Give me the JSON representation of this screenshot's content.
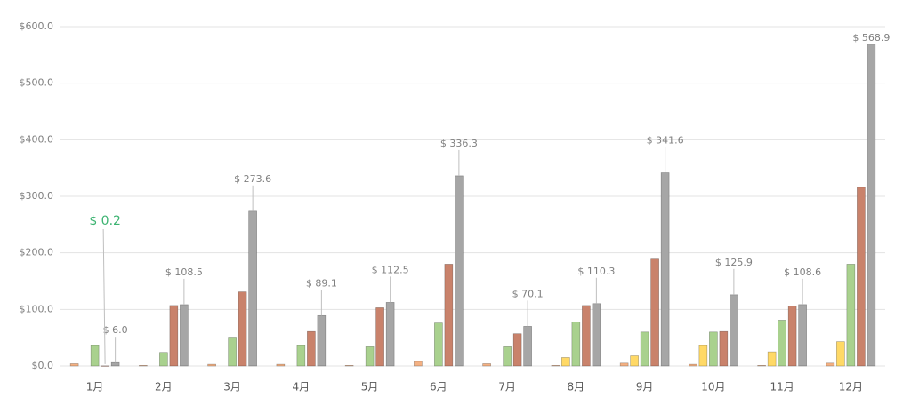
{
  "chart_data": {
    "type": "bar",
    "categories": [
      "1月",
      "2月",
      "3月",
      "4月",
      "5月",
      "6月",
      "7月",
      "8月",
      "9月",
      "10月",
      "11月",
      "12月"
    ],
    "series": [
      {
        "color": "#f4b183",
        "values": [
          4,
          1,
          3,
          3,
          1,
          8,
          4,
          1,
          5,
          3,
          1,
          5
        ]
      },
      {
        "color": "#ffd966",
        "values": [
          null,
          null,
          null,
          null,
          null,
          null,
          null,
          15,
          18,
          36,
          25,
          43
        ]
      },
      {
        "color": "#a9d18e",
        "values": [
          36,
          24,
          51,
          36,
          34,
          76,
          34,
          78,
          60,
          60,
          81,
          180
        ]
      },
      {
        "color": "#c9826b",
        "values": [
          0.2,
          107,
          131,
          61,
          103,
          180,
          57,
          107,
          189,
          61,
          106,
          316
        ]
      },
      {
        "color": "#a6a6a6",
        "values": [
          6.0,
          108.5,
          273.6,
          89.1,
          112.5,
          336.3,
          70.1,
          110.3,
          341.6,
          125.9,
          108.6,
          568.9
        ],
        "value_labels": [
          "$ 6.0",
          "$ 108.5",
          "$ 273.6",
          "$ 89.1",
          "$ 112.5",
          "$ 336.3",
          "$ 70.1",
          "$ 110.3",
          "$ 341.6",
          "$ 125.9",
          "$ 108.6",
          "$ 568.9"
        ]
      }
    ],
    "annotation": {
      "text": "$ 0.2",
      "color": "#3cb371"
    },
    "ylim": [
      0,
      600
    ],
    "yticks": [
      {
        "value": 0,
        "label": "$0.0"
      },
      {
        "value": 100,
        "label": "$100.0"
      },
      {
        "value": 200,
        "label": "$200.0"
      },
      {
        "value": 300,
        "label": "$300.0"
      },
      {
        "value": 400,
        "label": "$400.0"
      },
      {
        "value": 500,
        "label": "$500.0"
      },
      {
        "value": 600,
        "label": "$600.0"
      }
    ],
    "grid": true
  }
}
